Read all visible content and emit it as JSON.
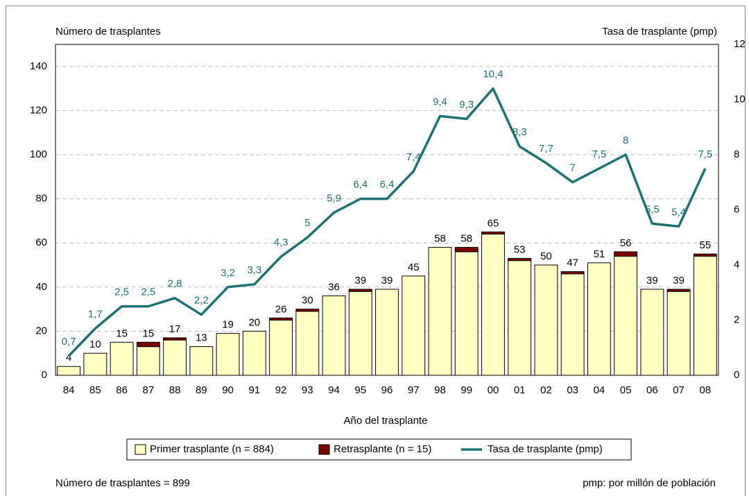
{
  "chart_data": {
    "type": "bar-line",
    "y_label": "Número de trasplantes",
    "y2_label": "Tasa de trasplante (pmp)",
    "x_label": "Año del trasplante",
    "footnote_left": "Número de trasplantes = 899",
    "footnote_right": "pmp: por millón de población",
    "categories": [
      "84",
      "85",
      "86",
      "87",
      "88",
      "89",
      "90",
      "91",
      "92",
      "93",
      "94",
      "95",
      "96",
      "97",
      "98",
      "99",
      "00",
      "01",
      "02",
      "03",
      "04",
      "05",
      "06",
      "07",
      "08"
    ],
    "series": [
      {
        "name": "Primer trasplante (n = 884)",
        "color": "#ffffc0",
        "values": [
          4,
          10,
          15,
          13,
          16,
          13,
          19,
          20,
          25,
          29,
          36,
          38,
          39,
          45,
          58,
          56,
          64,
          52,
          50,
          46,
          51,
          54,
          39,
          38,
          54
        ]
      },
      {
        "name": "Retrasplante (n = 15)",
        "color": "#800000",
        "values": [
          0,
          0,
          0,
          2,
          1,
          0,
          0,
          0,
          1,
          1,
          0,
          1,
          0,
          0,
          0,
          2,
          1,
          1,
          0,
          1,
          0,
          2,
          0,
          1,
          1
        ]
      },
      {
        "name": "Tasa de trasplante (pmp)",
        "color": "#1a7373",
        "axis": "y2",
        "values": [
          0.7,
          1.7,
          2.5,
          2.5,
          2.8,
          2.2,
          3.2,
          3.3,
          4.3,
          5,
          5.9,
          6.4,
          6.4,
          7.4,
          9.4,
          9.3,
          10.4,
          8.3,
          7.7,
          7,
          7.5,
          8,
          5.5,
          5.4,
          7.5
        ],
        "value_labels": [
          "0,7",
          "1,7",
          "2,5",
          "2,5",
          "2,8",
          "2,2",
          "3,2",
          "3,3",
          "4,3",
          "5",
          "5,9",
          "6,4",
          "6,4",
          "7,4",
          "9,4",
          "9,3",
          "10,4",
          "8,3",
          "7,7",
          "7",
          "7,5",
          "8",
          "5,5",
          "5,4",
          "7,5"
        ]
      }
    ],
    "totals": [
      4,
      10,
      15,
      15,
      17,
      13,
      19,
      20,
      26,
      30,
      36,
      39,
      39,
      45,
      58,
      58,
      65,
      53,
      50,
      47,
      51,
      56,
      39,
      39,
      55
    ],
    "ylim": [
      0,
      150
    ],
    "yticks": [
      0,
      20,
      40,
      60,
      80,
      100,
      120,
      140
    ],
    "y2lim": [
      0,
      12
    ],
    "y2ticks": [
      0,
      2,
      4,
      6,
      8,
      10,
      12
    ],
    "grid": true,
    "legend": "bottom"
  }
}
